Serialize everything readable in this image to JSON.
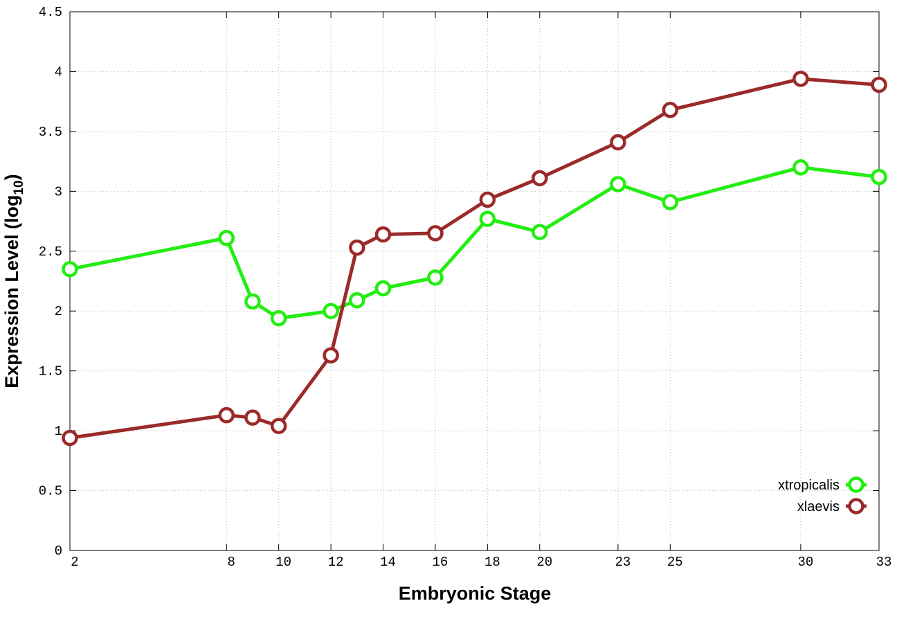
{
  "chart_data": {
    "type": "line",
    "xlabel": "Embryonic Stage",
    "ylabel": [
      "Expression Level (log",
      "10",
      ")"
    ],
    "x": [
      2,
      8,
      9,
      10,
      12,
      13,
      14,
      16,
      18,
      20,
      23,
      25,
      30,
      33
    ],
    "series": [
      {
        "name": "xtropicalis",
        "color": "#22ee11",
        "values": [
          2.35,
          2.61,
          2.08,
          1.94,
          2.0,
          2.09,
          2.19,
          2.28,
          2.77,
          2.66,
          3.06,
          2.91,
          3.2,
          3.12
        ]
      },
      {
        "name": "xlaevis",
        "color": "#9b2a2a",
        "values": [
          0.94,
          1.13,
          1.11,
          1.04,
          1.63,
          2.53,
          2.64,
          2.65,
          2.93,
          3.11,
          3.41,
          3.68,
          3.94,
          3.89
        ]
      }
    ],
    "xlim": [
      2,
      33
    ],
    "xticks": [
      2,
      8,
      10,
      12,
      14,
      16,
      18,
      20,
      23,
      25,
      30,
      33
    ],
    "ylim": [
      0,
      4.5
    ],
    "yticks": [
      0,
      0.5,
      1,
      1.5,
      2,
      2.5,
      3,
      3.5,
      4,
      4.5
    ],
    "grid": true,
    "legend": "lower-right"
  }
}
